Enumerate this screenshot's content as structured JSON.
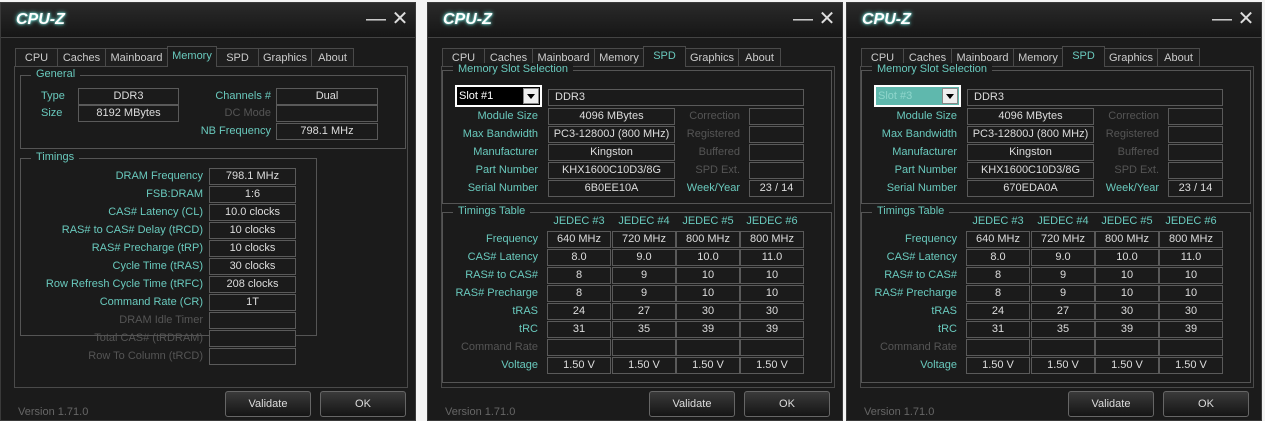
{
  "colors": {
    "accent": "#69c9bd",
    "background": "#1b1b1b",
    "value_text": "#dddddd",
    "disabled": "#555555"
  },
  "windows": [
    {
      "title": "CPU-Z",
      "minimize_icon": "minimize-icon",
      "close_icon": "close-icon",
      "tabs": [
        "CPU",
        "Caches",
        "Mainboard",
        "Memory",
        "SPD",
        "Graphics",
        "About"
      ],
      "active_tab": "Memory",
      "general": {
        "label": "General",
        "type_label": "Type",
        "type": "DDR3",
        "size_label": "Size",
        "size": "8192 MBytes",
        "channels_label": "Channels #",
        "channels": "Dual",
        "dc_mode_label": "DC Mode",
        "dc_mode": "",
        "nb_freq_label": "NB Frequency",
        "nb_freq": "798.1 MHz"
      },
      "timings": {
        "label": "Timings",
        "rows": [
          {
            "label": "DRAM Frequency",
            "value": "798.1 MHz",
            "enabled": true
          },
          {
            "label": "FSB:DRAM",
            "value": "1:6",
            "enabled": true
          },
          {
            "label": "CAS# Latency (CL)",
            "value": "10.0 clocks",
            "enabled": true
          },
          {
            "label": "RAS# to CAS# Delay (tRCD)",
            "value": "10 clocks",
            "enabled": true
          },
          {
            "label": "RAS# Precharge (tRP)",
            "value": "10 clocks",
            "enabled": true
          },
          {
            "label": "Cycle Time (tRAS)",
            "value": "30 clocks",
            "enabled": true
          },
          {
            "label": "Row Refresh Cycle Time (tRFC)",
            "value": "208 clocks",
            "enabled": true
          },
          {
            "label": "Command Rate (CR)",
            "value": "1T",
            "enabled": true
          },
          {
            "label": "DRAM Idle Timer",
            "value": "",
            "enabled": false
          },
          {
            "label": "Total CAS# (tRDRAM)",
            "value": "",
            "enabled": false
          },
          {
            "label": "Row To Column (tRCD)",
            "value": "",
            "enabled": false
          }
        ]
      },
      "version": "Version 1.71.0",
      "validate": "Validate",
      "ok": "OK"
    },
    {
      "title": "CPU-Z",
      "minimize_icon": "minimize-icon",
      "close_icon": "close-icon",
      "tabs": [
        "CPU",
        "Caches",
        "Mainboard",
        "Memory",
        "SPD",
        "Graphics",
        "About"
      ],
      "active_tab": "SPD",
      "slot": {
        "label": "Memory Slot Selection",
        "selected": "Slot #1",
        "highlighted": false,
        "type": "DDR3",
        "left": [
          {
            "label": "Module Size",
            "value": "4096 MBytes"
          },
          {
            "label": "Max Bandwidth",
            "value": "PC3-12800J (800 MHz)"
          },
          {
            "label": "Manufacturer",
            "value": "Kingston"
          },
          {
            "label": "Part Number",
            "value": "KHX1600C10D3/8G"
          },
          {
            "label": "Serial Number",
            "value": "6B0EE10A"
          }
        ],
        "right": [
          {
            "label": "Correction",
            "value": "",
            "enabled": false
          },
          {
            "label": "Registered",
            "value": "",
            "enabled": false
          },
          {
            "label": "Buffered",
            "value": "",
            "enabled": false
          },
          {
            "label": "SPD Ext.",
            "value": "",
            "enabled": false
          },
          {
            "label": "Week/Year",
            "value": "23 / 14",
            "enabled": true
          }
        ]
      },
      "table": {
        "label": "Timings Table",
        "columns": [
          "JEDEC #3",
          "JEDEC #4",
          "JEDEC #5",
          "JEDEC #6"
        ],
        "rows": [
          {
            "label": "Frequency",
            "values": [
              "640 MHz",
              "720 MHz",
              "800 MHz",
              "800 MHz"
            ],
            "enabled": true
          },
          {
            "label": "CAS# Latency",
            "values": [
              "8.0",
              "9.0",
              "10.0",
              "11.0"
            ],
            "enabled": true
          },
          {
            "label": "RAS# to CAS#",
            "values": [
              "8",
              "9",
              "10",
              "10"
            ],
            "enabled": true
          },
          {
            "label": "RAS# Precharge",
            "values": [
              "8",
              "9",
              "10",
              "10"
            ],
            "enabled": true
          },
          {
            "label": "tRAS",
            "values": [
              "24",
              "27",
              "30",
              "30"
            ],
            "enabled": true
          },
          {
            "label": "tRC",
            "values": [
              "31",
              "35",
              "39",
              "39"
            ],
            "enabled": true
          },
          {
            "label": "Command Rate",
            "values": [
              "",
              "",
              "",
              ""
            ],
            "enabled": false
          },
          {
            "label": "Voltage",
            "values": [
              "1.50 V",
              "1.50 V",
              "1.50 V",
              "1.50 V"
            ],
            "enabled": true
          }
        ]
      },
      "version": "Version 1.71.0",
      "validate": "Validate",
      "ok": "OK"
    },
    {
      "title": "CPU-Z",
      "minimize_icon": "minimize-icon",
      "close_icon": "close-icon",
      "tabs": [
        "CPU",
        "Caches",
        "Mainboard",
        "Memory",
        "SPD",
        "Graphics",
        "About"
      ],
      "active_tab": "SPD",
      "slot": {
        "label": "Memory Slot Selection",
        "selected": "Slot #3",
        "highlighted": true,
        "type": "DDR3",
        "left": [
          {
            "label": "Module Size",
            "value": "4096 MBytes"
          },
          {
            "label": "Max Bandwidth",
            "value": "PC3-12800J (800 MHz)"
          },
          {
            "label": "Manufacturer",
            "value": "Kingston"
          },
          {
            "label": "Part Number",
            "value": "KHX1600C10D3/8G"
          },
          {
            "label": "Serial Number",
            "value": "670EDA0A"
          }
        ],
        "right": [
          {
            "label": "Correction",
            "value": "",
            "enabled": false
          },
          {
            "label": "Registered",
            "value": "",
            "enabled": false
          },
          {
            "label": "Buffered",
            "value": "",
            "enabled": false
          },
          {
            "label": "SPD Ext.",
            "value": "",
            "enabled": false
          },
          {
            "label": "Week/Year",
            "value": "23 / 14",
            "enabled": true
          }
        ]
      },
      "table": {
        "label": "Timings Table",
        "columns": [
          "JEDEC #3",
          "JEDEC #4",
          "JEDEC #5",
          "JEDEC #6"
        ],
        "rows": [
          {
            "label": "Frequency",
            "values": [
              "640 MHz",
              "720 MHz",
              "800 MHz",
              "800 MHz"
            ],
            "enabled": true
          },
          {
            "label": "CAS# Latency",
            "values": [
              "8.0",
              "9.0",
              "10.0",
              "11.0"
            ],
            "enabled": true
          },
          {
            "label": "RAS# to CAS#",
            "values": [
              "8",
              "9",
              "10",
              "10"
            ],
            "enabled": true
          },
          {
            "label": "RAS# Precharge",
            "values": [
              "8",
              "9",
              "10",
              "10"
            ],
            "enabled": true
          },
          {
            "label": "tRAS",
            "values": [
              "24",
              "27",
              "30",
              "30"
            ],
            "enabled": true
          },
          {
            "label": "tRC",
            "values": [
              "31",
              "35",
              "39",
              "39"
            ],
            "enabled": true
          },
          {
            "label": "Command Rate",
            "values": [
              "",
              "",
              "",
              ""
            ],
            "enabled": false
          },
          {
            "label": "Voltage",
            "values": [
              "1.50 V",
              "1.50 V",
              "1.50 V",
              "1.50 V"
            ],
            "enabled": true
          }
        ]
      },
      "version": "Version 1.71.0",
      "validate": "Validate",
      "ok": "OK"
    }
  ]
}
